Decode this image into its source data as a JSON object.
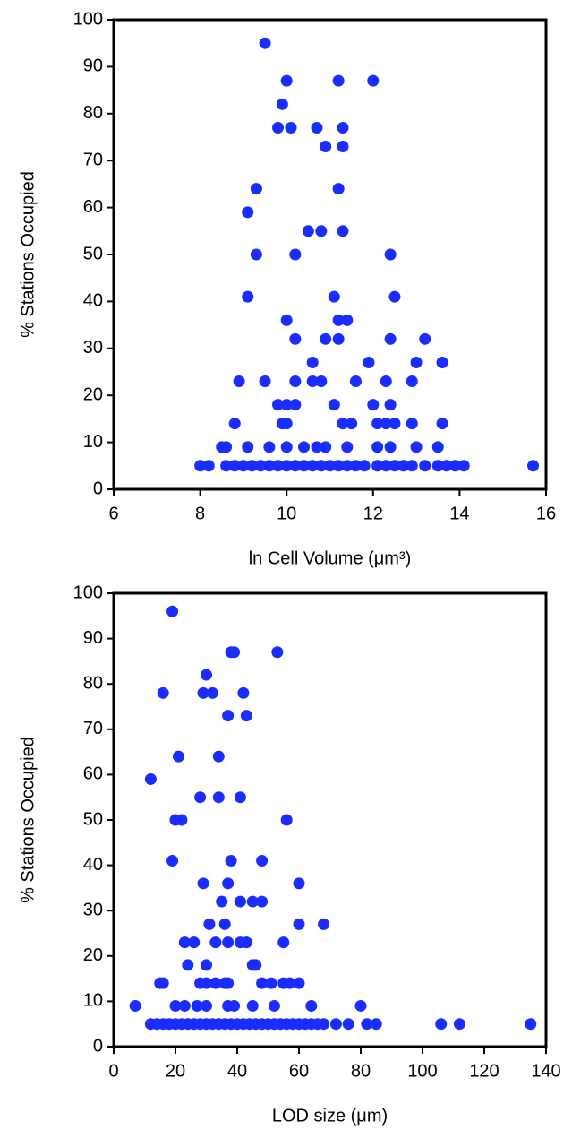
{
  "chart_data": [
    {
      "type": "scatter",
      "xlabel": "ln Cell Volume (μm³)",
      "ylabel": "% Stations Occupied",
      "color": "#1a2cff",
      "xlim": [
        6,
        16
      ],
      "ylim": [
        0,
        100
      ],
      "xticks": [
        6,
        8,
        10,
        12,
        14,
        16
      ],
      "yticks": [
        0,
        10,
        20,
        30,
        40,
        50,
        60,
        70,
        80,
        90,
        100
      ],
      "x": [
        9.5,
        10.0,
        11.2,
        12.0,
        9.9,
        9.8,
        10.1,
        10.7,
        11.3,
        10.9,
        11.3,
        9.3,
        11.2,
        9.1,
        10.5,
        10.8,
        11.3,
        9.3,
        10.2,
        12.4,
        9.1,
        11.1,
        12.5,
        10.0,
        11.2,
        11.4,
        10.2,
        10.9,
        11.2,
        12.4,
        13.2,
        10.6,
        11.9,
        13.0,
        13.6,
        8.9,
        9.5,
        10.2,
        10.6,
        10.8,
        11.6,
        12.3,
        12.9,
        9.8,
        10.0,
        10.2,
        11.1,
        12.0,
        12.4,
        8.8,
        9.9,
        10.0,
        11.3,
        11.5,
        12.1,
        12.3,
        12.5,
        12.9,
        13.6,
        8.5,
        8.6,
        9.1,
        9.6,
        10.0,
        10.4,
        10.7,
        10.9,
        11.4,
        12.1,
        12.4,
        13.0,
        13.5,
        8.0,
        8.2,
        8.6,
        8.8,
        9.0,
        9.2,
        9.4,
        9.6,
        9.8,
        10.0,
        10.2,
        10.4,
        10.6,
        10.8,
        11.0,
        11.2,
        11.4,
        11.6,
        11.8,
        12.1,
        12.3,
        12.5,
        12.7,
        12.9,
        13.2,
        13.5,
        13.7,
        13.9,
        14.1,
        15.7
      ],
      "values": [
        95,
        87,
        87,
        87,
        82,
        77,
        77,
        77,
        77,
        73,
        73,
        64,
        64,
        59,
        55,
        55,
        55,
        50,
        50,
        50,
        41,
        41,
        41,
        36,
        36,
        36,
        32,
        32,
        32,
        32,
        32,
        27,
        27,
        27,
        27,
        23,
        23,
        23,
        23,
        23,
        23,
        23,
        23,
        18,
        18,
        18,
        18,
        18,
        18,
        14,
        14,
        14,
        14,
        14,
        14,
        14,
        14,
        14,
        14,
        9,
        9,
        9,
        9,
        9,
        9,
        9,
        9,
        9,
        9,
        9,
        9,
        9,
        5,
        5,
        5,
        5,
        5,
        5,
        5,
        5,
        5,
        5,
        5,
        5,
        5,
        5,
        5,
        5,
        5,
        5,
        5,
        5,
        5,
        5,
        5,
        5,
        5,
        5,
        5,
        5,
        5,
        5
      ]
    },
    {
      "type": "scatter",
      "xlabel": "LOD size (μm)",
      "ylabel": "% Stations Occupied",
      "color": "#1a2cff",
      "xlim": [
        0,
        140
      ],
      "ylim": [
        0,
        100
      ],
      "xticks": [
        0,
        20,
        40,
        60,
        80,
        100,
        120,
        140
      ],
      "yticks": [
        0,
        10,
        20,
        30,
        40,
        50,
        60,
        70,
        80,
        90,
        100
      ],
      "x": [
        19,
        38,
        39,
        53,
        30,
        16,
        29,
        32,
        42,
        37,
        43,
        21,
        34,
        12,
        28,
        34,
        41,
        20,
        22,
        56,
        19,
        38,
        48,
        29,
        37,
        60,
        35,
        41,
        45,
        48,
        31,
        36,
        60,
        68,
        23,
        26,
        33,
        37,
        41,
        43,
        55,
        24,
        30,
        45,
        46,
        15,
        16,
        28,
        30,
        33,
        36,
        37,
        48,
        51,
        55,
        57,
        60,
        7,
        20,
        23,
        27,
        30,
        37,
        39,
        45,
        52,
        64,
        80,
        12,
        14,
        16,
        18,
        20,
        22,
        24,
        26,
        28,
        30,
        32,
        34,
        36,
        38,
        40,
        42,
        44,
        46,
        48,
        50,
        52,
        54,
        56,
        58,
        60,
        62,
        64,
        66,
        68,
        72,
        76,
        82,
        85,
        106,
        112,
        135
      ],
      "values": [
        96,
        87,
        87,
        87,
        82,
        78,
        78,
        78,
        78,
        73,
        73,
        64,
        64,
        59,
        55,
        55,
        55,
        50,
        50,
        50,
        41,
        41,
        41,
        36,
        36,
        36,
        32,
        32,
        32,
        32,
        27,
        27,
        27,
        27,
        23,
        23,
        23,
        23,
        23,
        23,
        23,
        18,
        18,
        18,
        18,
        14,
        14,
        14,
        14,
        14,
        14,
        14,
        14,
        14,
        14,
        14,
        14,
        9,
        9,
        9,
        9,
        9,
        9,
        9,
        9,
        9,
        9,
        9,
        5,
        5,
        5,
        5,
        5,
        5,
        5,
        5,
        5,
        5,
        5,
        5,
        5,
        5,
        5,
        5,
        5,
        5,
        5,
        5,
        5,
        5,
        5,
        5,
        5,
        5,
        5,
        5,
        5,
        5,
        5,
        5,
        5,
        5,
        5,
        5
      ]
    }
  ]
}
